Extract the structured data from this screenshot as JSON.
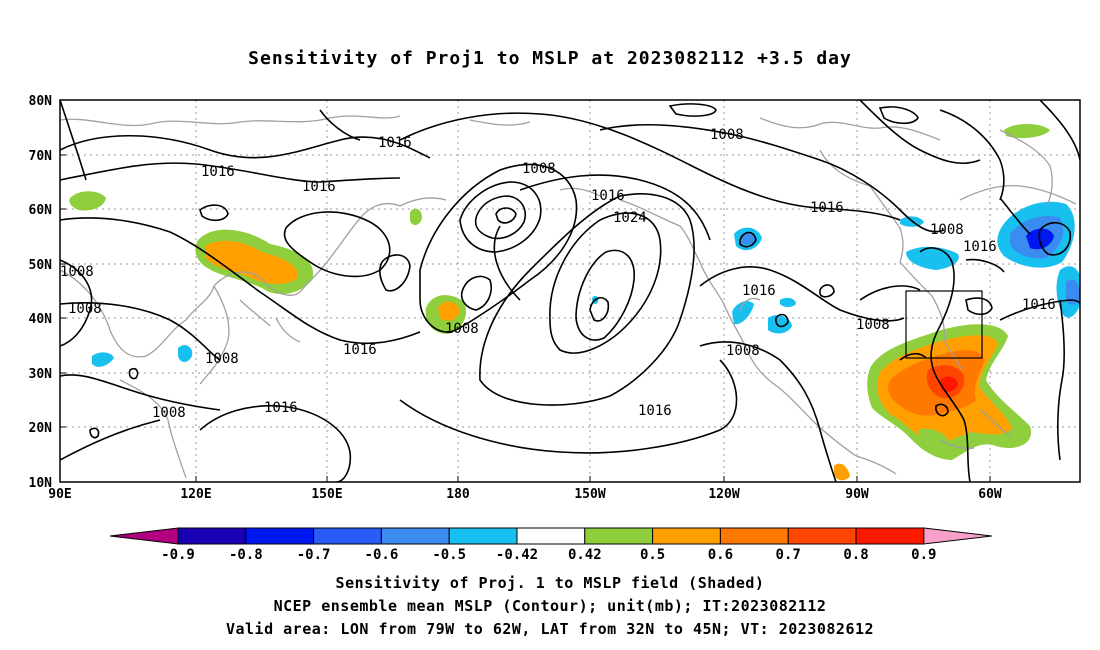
{
  "title": "Sensitivity of Proj1 to MSLP at 2023082112 +3.5 day",
  "map": {
    "lat_labels": [
      "80N",
      "70N",
      "60N",
      "50N",
      "40N",
      "30N",
      "20N",
      "10N"
    ],
    "lon_labels": [
      "90E",
      "120E",
      "150E",
      "180",
      "150W",
      "120W",
      "90W",
      "60W"
    ],
    "contour_labels": [
      {
        "text": "1016"
      },
      {
        "text": "1016"
      },
      {
        "text": "1016"
      },
      {
        "text": "1008"
      },
      {
        "text": "1008"
      },
      {
        "text": "1016"
      },
      {
        "text": "1024"
      },
      {
        "text": "1016"
      },
      {
        "text": "1008"
      },
      {
        "text": "1016"
      },
      {
        "text": "1008"
      },
      {
        "text": "1008"
      },
      {
        "text": "1016"
      },
      {
        "text": "1008"
      },
      {
        "text": "1008"
      },
      {
        "text": "1016"
      },
      {
        "text": "1008"
      },
      {
        "text": "1008"
      },
      {
        "text": "1008"
      },
      {
        "text": "1016"
      },
      {
        "text": "1016"
      },
      {
        "text": "1016"
      },
      {
        "text": "1008"
      }
    ],
    "colors": {
      "contour": "#000000",
      "coastline": "#a0a0a0",
      "grid": "#9a9a9a",
      "box": "#000000"
    }
  },
  "colorbar": {
    "colors": [
      "#b0007f",
      "#1a00b4",
      "#0018f0",
      "#2a5cf5",
      "#3b8cf0",
      "#18c0f0",
      "#ffffff",
      "#8fce3c",
      "#ffa000",
      "#ff7800",
      "#ff4600",
      "#ff1800",
      "#f8a0c8"
    ],
    "labels": [
      "-0.9",
      "-0.8",
      "-0.7",
      "-0.6",
      "-0.5",
      "-0.42",
      "0.42",
      "0.5",
      "0.6",
      "0.7",
      "0.8",
      "0.9"
    ]
  },
  "captions": [
    "Sensitivity of Proj. 1 to MSLP field (Shaded)",
    "NCEP ensemble mean MSLP (Contour); unit(mb); IT:2023082112",
    "Valid area: LON from 79W to 62W, LAT from 32N to 45N; VT: 2023082612"
  ]
}
